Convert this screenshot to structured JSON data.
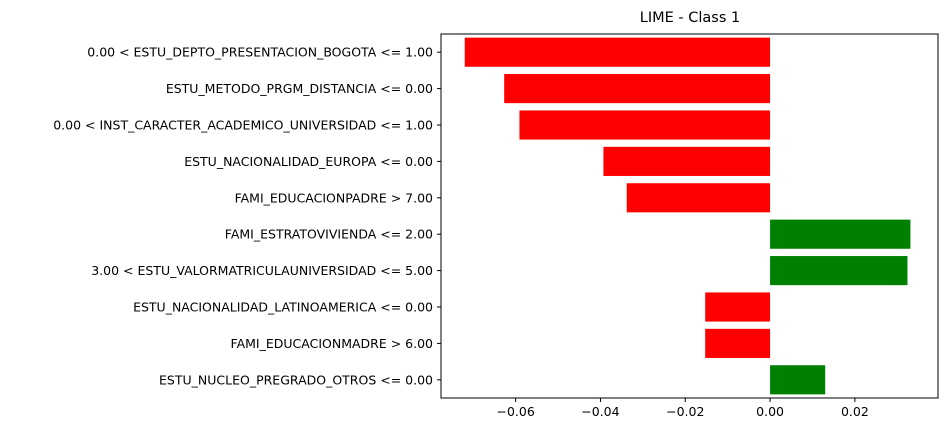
{
  "chart_data": {
    "type": "bar",
    "orientation": "horizontal",
    "title": "LIME - Class 1",
    "xlabel": "",
    "ylabel": "",
    "xlim": [
      -0.0776,
      0.0396
    ],
    "grid": false,
    "legend": "none",
    "categories": [
      "0.00 < ESTU_DEPTO_PRESENTACION_BOGOTA <= 1.00",
      "ESTU_METODO_PRGM_DISTANCIA <= 0.00",
      "0.00 < INST_CARACTER_ACADEMICO_UNIVERSIDAD <= 1.00",
      "ESTU_NACIONALIDAD_EUROPA <= 0.00",
      "FAMI_EDUCACIONPADRE > 7.00",
      "FAMI_ESTRATOVIVIENDA <= 2.00",
      "3.00 < ESTU_VALORMATRICULAUNIVERSIDAD <= 5.00",
      "ESTU_NACIONALIDAD_LATINOAMERICA <= 0.00",
      "FAMI_EDUCACIONMADRE > 6.00",
      "ESTU_NUCLEO_PREGRADO_OTROS <= 0.00"
    ],
    "values": [
      -0.072,
      -0.0627,
      -0.0591,
      -0.0393,
      -0.0338,
      0.0331,
      0.0324,
      -0.0153,
      -0.0153,
      0.013
    ],
    "xticks": [
      -0.06,
      -0.04,
      -0.02,
      0.0,
      0.02
    ],
    "xtick_labels": [
      "−0.06",
      "−0.04",
      "−0.02",
      "0.00",
      "0.02"
    ],
    "colors": {
      "positive": "#008000",
      "negative": "#ff0000"
    }
  }
}
